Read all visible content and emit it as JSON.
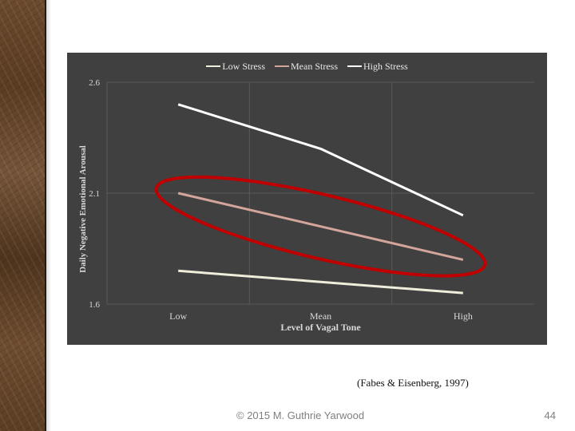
{
  "theme": {
    "plot_bg": "#404040",
    "grid": "#595959",
    "text": "#d9d9d9",
    "highlight_ellipse": "#c00000"
  },
  "chart_data": {
    "type": "line",
    "title": "",
    "xlabel": "Level of Vagal Tone",
    "ylabel": "Daily Negative Emotional Arousal",
    "categories": [
      "Low",
      "Mean",
      "High"
    ],
    "yticks": [
      "1.6",
      "2.1",
      "2.6"
    ],
    "ylim": [
      1.6,
      2.6
    ],
    "grid": true,
    "legend_position": "top",
    "series": [
      {
        "name": "Low Stress",
        "color": "#eeeeda",
        "values": [
          1.75,
          1.7,
          1.65
        ]
      },
      {
        "name": "Mean Stress",
        "color": "#d4a59a",
        "values": [
          2.1,
          1.95,
          1.8
        ]
      },
      {
        "name": "High Stress",
        "color": "#ffffff",
        "values": [
          2.5,
          2.3,
          2.0
        ]
      }
    ],
    "annotations": [
      "ellipse highlighting Mean Stress series"
    ]
  },
  "slide": {
    "citation": "(Fabes & Eisenberg, 1997)",
    "copyright": "© 2015 M. Guthrie Yarwood",
    "page_number": "44"
  }
}
